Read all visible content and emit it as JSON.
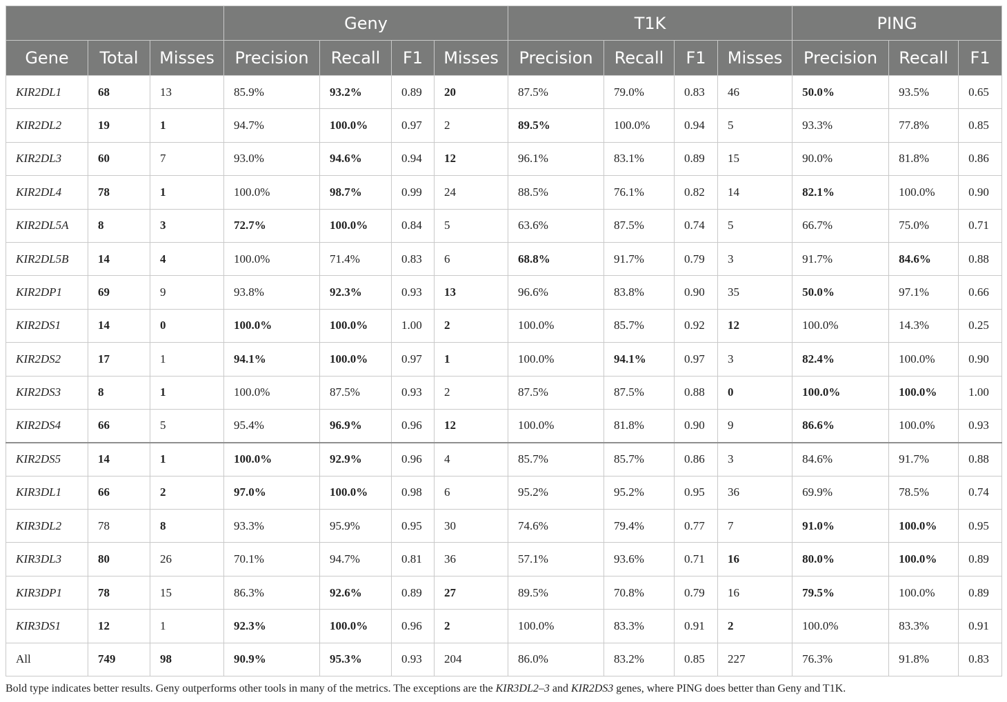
{
  "header": {
    "groups": [
      "Geny",
      "T1K",
      "PING"
    ],
    "columns": [
      "Gene",
      "Total",
      "Misses",
      "Precision",
      "Recall",
      "F1",
      "Misses",
      "Precision",
      "Recall",
      "F1",
      "Misses",
      "Precision",
      "Recall",
      "F1"
    ]
  },
  "rows": [
    {
      "gene": "KIR2DL1",
      "cells": [
        "68",
        "13",
        "85.9%",
        "93.2%",
        "0.89",
        "20",
        "87.5%",
        "79.0%",
        "0.83",
        "46",
        "50.0%",
        "93.5%",
        "0.65"
      ],
      "bold": [
        1,
        4,
        6,
        11
      ]
    },
    {
      "gene": "KIR2DL2",
      "cells": [
        "19",
        "1",
        "94.7%",
        "100.0%",
        "0.97",
        "2",
        "89.5%",
        "100.0%",
        "0.94",
        "5",
        "93.3%",
        "77.8%",
        "0.85"
      ],
      "bold": [
        1,
        2,
        4,
        7
      ]
    },
    {
      "gene": "KIR2DL3",
      "cells": [
        "60",
        "7",
        "93.0%",
        "94.6%",
        "0.94",
        "12",
        "96.1%",
        "83.1%",
        "0.89",
        "15",
        "90.0%",
        "81.8%",
        "0.86"
      ],
      "bold": [
        1,
        4,
        6
      ]
    },
    {
      "gene": "KIR2DL4",
      "cells": [
        "78",
        "1",
        "100.0%",
        "98.7%",
        "0.99",
        "24",
        "88.5%",
        "76.1%",
        "0.82",
        "14",
        "82.1%",
        "100.0%",
        "0.90"
      ],
      "bold": [
        1,
        2,
        4,
        11
      ]
    },
    {
      "gene": "KIR2DL5A",
      "cells": [
        "8",
        "3",
        "72.7%",
        "100.0%",
        "0.84",
        "5",
        "63.6%",
        "87.5%",
        "0.74",
        "5",
        "66.7%",
        "75.0%",
        "0.71"
      ],
      "bold": [
        1,
        2,
        3,
        4
      ]
    },
    {
      "gene": "KIR2DL5B",
      "cells": [
        "14",
        "4",
        "100.0%",
        "71.4%",
        "0.83",
        "6",
        "68.8%",
        "91.7%",
        "0.79",
        "3",
        "91.7%",
        "84.6%",
        "0.88"
      ],
      "bold": [
        1,
        2,
        7,
        12
      ]
    },
    {
      "gene": "KIR2DP1",
      "cells": [
        "69",
        "9",
        "93.8%",
        "92.3%",
        "0.93",
        "13",
        "96.6%",
        "83.8%",
        "0.90",
        "35",
        "50.0%",
        "97.1%",
        "0.66"
      ],
      "bold": [
        1,
        4,
        6,
        11
      ]
    },
    {
      "gene": "KIR2DS1",
      "cells": [
        "14",
        "0",
        "100.0%",
        "100.0%",
        "1.00",
        "2",
        "100.0%",
        "85.7%",
        "0.92",
        "12",
        "100.0%",
        "14.3%",
        "0.25"
      ],
      "bold": [
        1,
        2,
        3,
        4,
        6,
        10
      ]
    },
    {
      "gene": "KIR2DS2",
      "cells": [
        "17",
        "1",
        "94.1%",
        "100.0%",
        "0.97",
        "1",
        "100.0%",
        "94.1%",
        "0.97",
        "3",
        "82.4%",
        "100.0%",
        "0.90"
      ],
      "bold": [
        1,
        3,
        4,
        6,
        8,
        11
      ]
    },
    {
      "gene": "KIR2DS3",
      "cells": [
        "8",
        "1",
        "100.0%",
        "87.5%",
        "0.93",
        "2",
        "87.5%",
        "87.5%",
        "0.88",
        "0",
        "100.0%",
        "100.0%",
        "1.00"
      ],
      "bold": [
        1,
        2,
        10,
        11,
        12
      ]
    },
    {
      "gene": "KIR2DS4",
      "cells": [
        "66",
        "5",
        "95.4%",
        "96.9%",
        "0.96",
        "12",
        "100.0%",
        "81.8%",
        "0.90",
        "9",
        "86.6%",
        "100.0%",
        "0.93"
      ],
      "bold": [
        1,
        4,
        6,
        11
      ]
    },
    {
      "gene": "KIR2DS5",
      "cells": [
        "14",
        "1",
        "100.0%",
        "92.9%",
        "0.96",
        "4",
        "85.7%",
        "85.7%",
        "0.86",
        "3",
        "84.6%",
        "91.7%",
        "0.88"
      ],
      "bold": [
        1,
        2,
        3,
        4
      ]
    },
    {
      "gene": "KIR3DL1",
      "cells": [
        "66",
        "2",
        "97.0%",
        "100.0%",
        "0.98",
        "6",
        "95.2%",
        "95.2%",
        "0.95",
        "36",
        "69.9%",
        "78.5%",
        "0.74"
      ],
      "bold": [
        1,
        2,
        3,
        4
      ]
    },
    {
      "gene": "KIR3DL2",
      "cells": [
        "78",
        "8",
        "93.3%",
        "95.9%",
        "0.95",
        "30",
        "74.6%",
        "79.4%",
        "0.77",
        "7",
        "91.0%",
        "100.0%",
        "0.95"
      ],
      "bold": [
        2,
        11,
        12
      ]
    },
    {
      "gene": "KIR3DL3",
      "cells": [
        "80",
        "26",
        "70.1%",
        "94.7%",
        "0.81",
        "36",
        "57.1%",
        "93.6%",
        "0.71",
        "16",
        "80.0%",
        "100.0%",
        "0.89"
      ],
      "bold": [
        1,
        10,
        11,
        12
      ]
    },
    {
      "gene": "KIR3DP1",
      "cells": [
        "78",
        "15",
        "86.3%",
        "92.6%",
        "0.89",
        "27",
        "89.5%",
        "70.8%",
        "0.79",
        "16",
        "79.5%",
        "100.0%",
        "0.89"
      ],
      "bold": [
        1,
        4,
        6,
        11
      ]
    },
    {
      "gene": "KIR3DS1",
      "cells": [
        "12",
        "1",
        "92.3%",
        "100.0%",
        "0.96",
        "2",
        "100.0%",
        "83.3%",
        "0.91",
        "2",
        "100.0%",
        "83.3%",
        "0.91"
      ],
      "bold": [
        1,
        3,
        4,
        6,
        10
      ]
    },
    {
      "gene": "All",
      "cells": [
        "749",
        "98",
        "90.9%",
        "95.3%",
        "0.93",
        "204",
        "86.0%",
        "83.2%",
        "0.85",
        "227",
        "76.3%",
        "91.8%",
        "0.83"
      ],
      "bold": [
        1,
        2,
        3,
        4
      ],
      "italic": false
    }
  ],
  "footnote": {
    "part1": "Bold type indicates better results. Geny outperforms other tools in many of the metrics. The exceptions are the ",
    "gene1": "KIR3DL2–3",
    "part2": " and ",
    "gene2": "KIR2DS3",
    "part3": " genes, where PING does better than Geny and T1K."
  }
}
